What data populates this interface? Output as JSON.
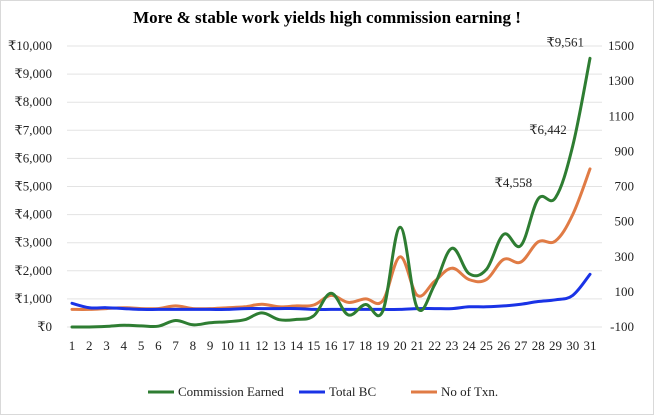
{
  "chart_data": {
    "type": "line",
    "title": "More & stable work yields high commission earning !",
    "categories": [
      "1",
      "2",
      "3",
      "4",
      "5",
      "6",
      "7",
      "8",
      "9",
      "10",
      "11",
      "12",
      "13",
      "14",
      "15",
      "16",
      "17",
      "18",
      "19",
      "20",
      "21",
      "22",
      "23",
      "24",
      "25",
      "26",
      "27",
      "28",
      "29",
      "30",
      "31"
    ],
    "series": [
      {
        "name": "Commission Earned",
        "axis": "left",
        "color": "#2e7d32",
        "values": [
          0,
          0,
          20,
          60,
          40,
          30,
          230,
          80,
          150,
          190,
          260,
          500,
          260,
          270,
          400,
          1200,
          430,
          800,
          570,
          3550,
          680,
          1500,
          2800,
          1900,
          2050,
          3300,
          2900,
          4558,
          4600,
          6442,
          9561
        ]
      },
      {
        "name": "Total BC",
        "axis": "right",
        "color": "#1a33e6",
        "values": [
          35,
          10,
          10,
          5,
          0,
          0,
          0,
          0,
          0,
          0,
          5,
          5,
          5,
          5,
          0,
          0,
          0,
          0,
          0,
          0,
          5,
          5,
          5,
          15,
          15,
          20,
          30,
          45,
          55,
          80,
          200
        ]
      },
      {
        "name": "No of Txn.",
        "axis": "right",
        "color": "#e07b45",
        "values": [
          0,
          0,
          5,
          10,
          5,
          5,
          20,
          5,
          5,
          10,
          15,
          30,
          15,
          20,
          25,
          80,
          40,
          60,
          50,
          300,
          80,
          160,
          235,
          170,
          170,
          285,
          270,
          385,
          390,
          540,
          800
        ]
      }
    ],
    "left_axis": {
      "min": 0,
      "max": 10000,
      "ticks": [
        "₹0",
        "₹1,000",
        "₹2,000",
        "₹3,000",
        "₹4,000",
        "₹5,000",
        "₹6,000",
        "₹7,000",
        "₹8,000",
        "₹9,000",
        "₹10,000"
      ]
    },
    "right_axis": {
      "min": -100,
      "max": 1500,
      "ticks": [
        "-100",
        "100",
        "300",
        "500",
        "700",
        "900",
        "1100",
        "1300",
        "1500"
      ]
    },
    "data_labels": [
      {
        "series": "Commission Earned",
        "index": 27,
        "text": "₹4,558"
      },
      {
        "series": "Commission Earned",
        "index": 29,
        "text": "₹6,442"
      },
      {
        "series": "Commission Earned",
        "index": 30,
        "text": "₹9,561"
      }
    ],
    "grid": true,
    "legend": "bottom"
  }
}
